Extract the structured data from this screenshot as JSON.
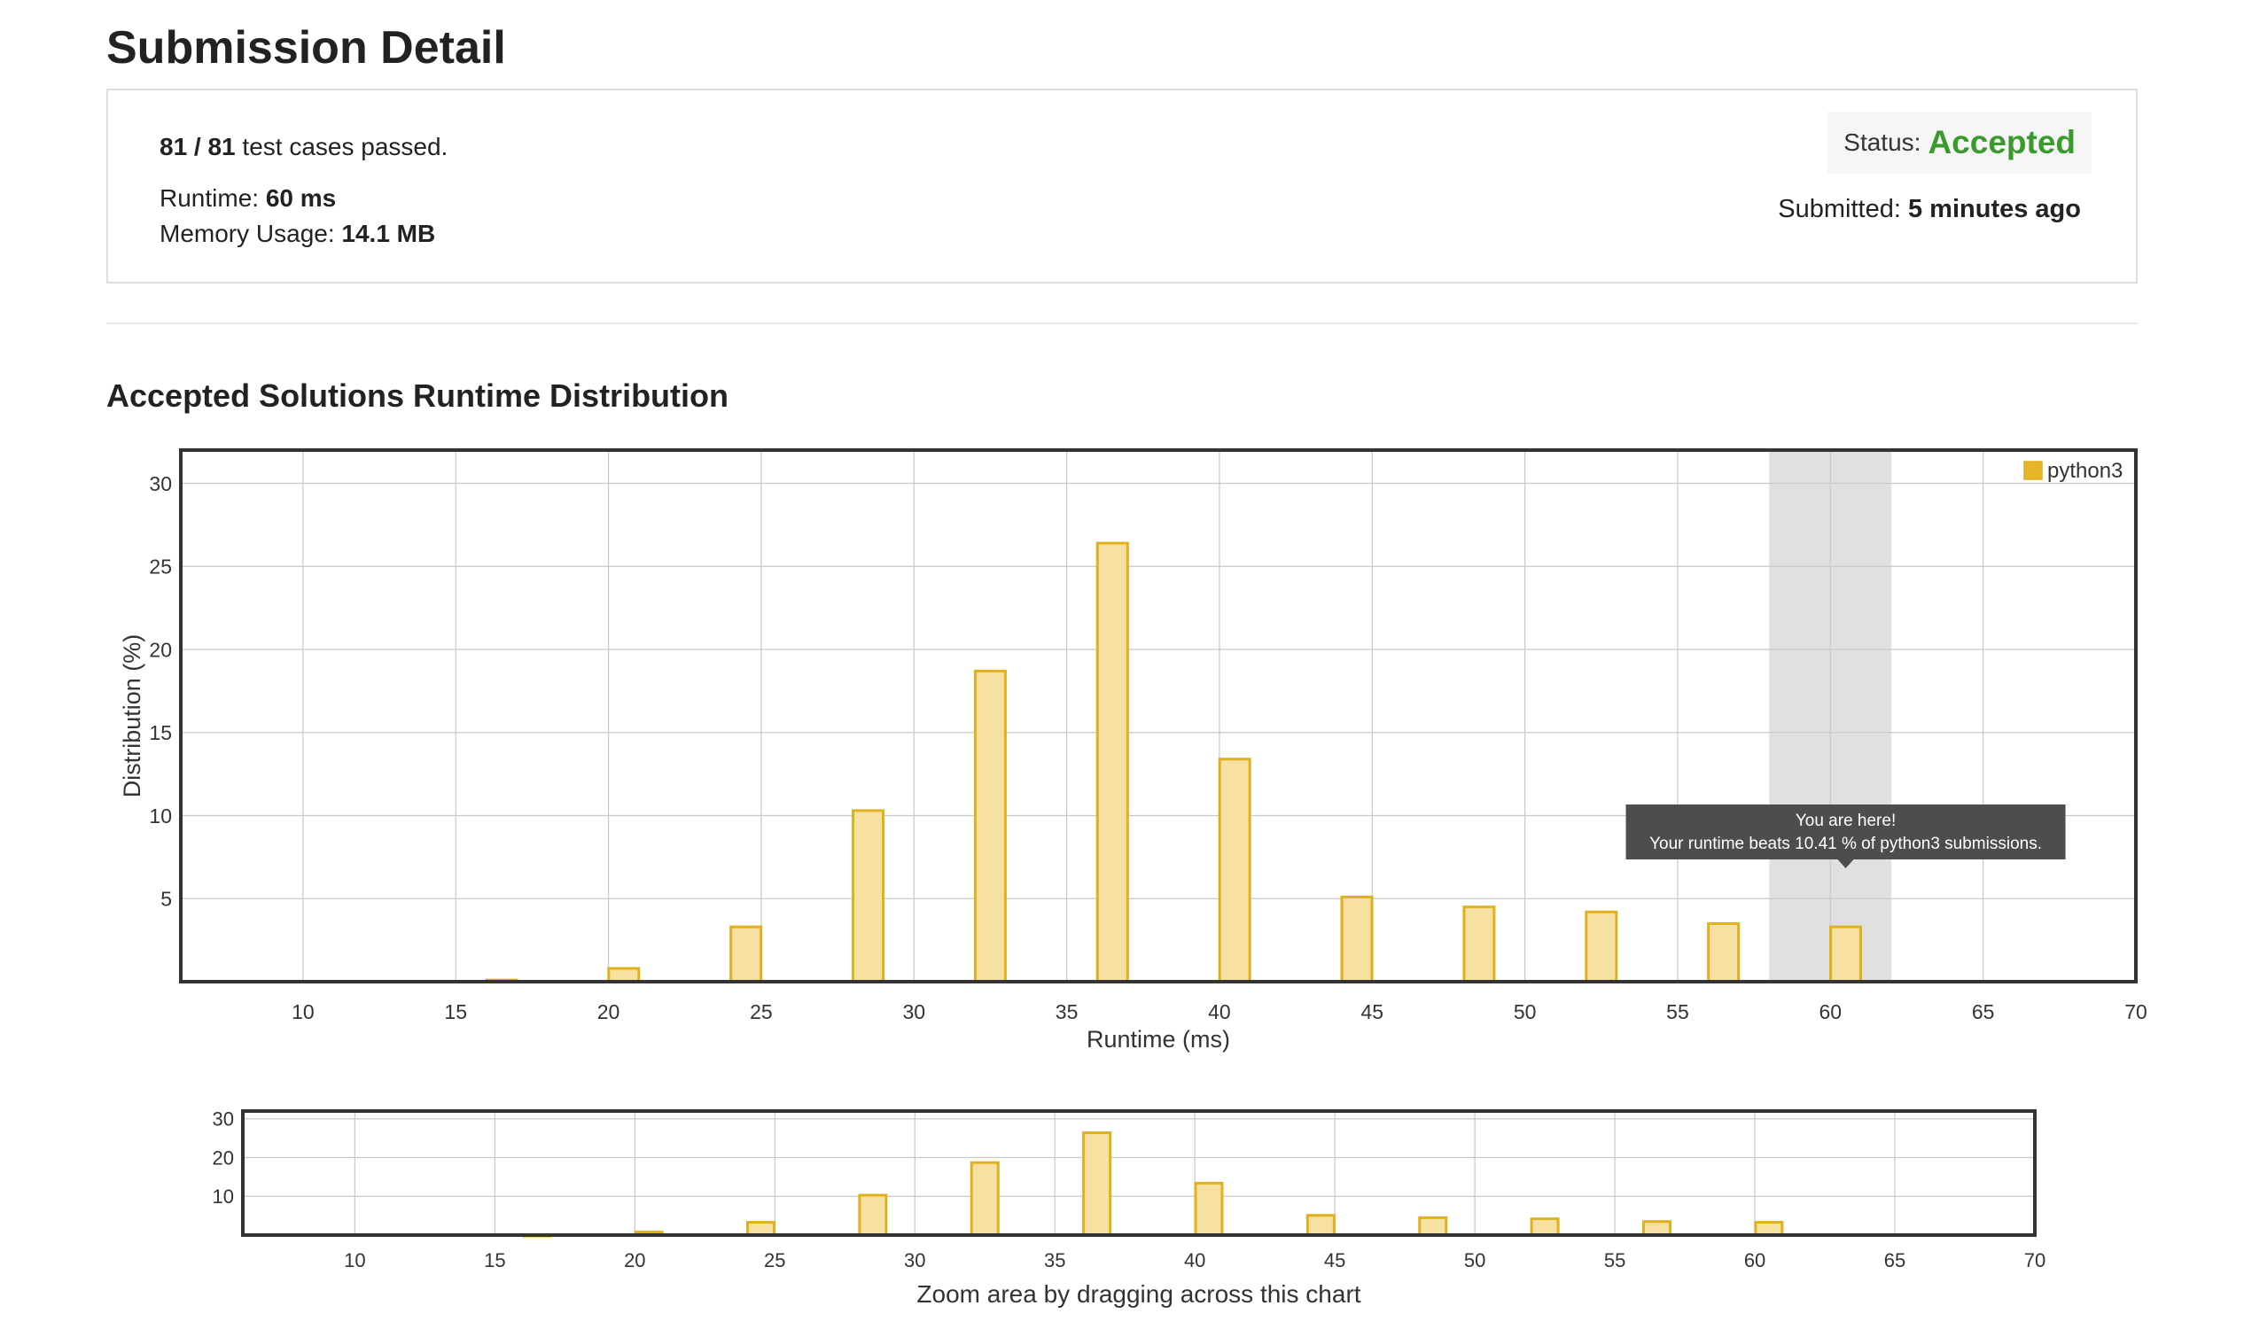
{
  "header": {
    "title": "Submission Detail"
  },
  "detail": {
    "tests_passed": "81 / 81",
    "tests_suffix": "test cases passed.",
    "runtime_label": "Runtime:",
    "runtime_value": "60 ms",
    "memory_label": "Memory Usage:",
    "memory_value": "14.1 MB",
    "status_label": "Status:",
    "status_value": "Accepted",
    "submitted_label": "Submitted:",
    "submitted_value": "5 minutes ago"
  },
  "section": {
    "title": "Accepted Solutions Runtime Distribution"
  },
  "colors": {
    "bar_fill": "#f6e1a3",
    "bar_stroke": "#e1b01f",
    "highlight_band": "#e0e0e0",
    "tooltip_bg": "#4d4d4d",
    "status_accent": "#3b9a2d"
  },
  "chart_data": [
    {
      "type": "bar",
      "xlabel": "Runtime (ms)",
      "ylabel": "Distribution (%)",
      "xlim": [
        6,
        70
      ],
      "ylim": [
        0,
        32
      ],
      "xticks": [
        10,
        15,
        20,
        25,
        30,
        35,
        40,
        45,
        50,
        55,
        60,
        65,
        70
      ],
      "yticks": [
        5,
        10,
        15,
        20,
        25,
        30
      ],
      "grid": true,
      "legend_position": "top-right",
      "highlight_range": [
        58,
        62
      ],
      "series": [
        {
          "name": "python3",
          "x": [
            16.5,
            20.5,
            24.5,
            28.5,
            32.5,
            36.5,
            40.5,
            44.5,
            48.5,
            52.5,
            56.5,
            60.5
          ],
          "values": [
            0.1,
            0.8,
            3.3,
            10.3,
            18.7,
            26.4,
            13.4,
            5.1,
            4.5,
            4.2,
            3.5,
            3.3
          ]
        }
      ],
      "tooltip": {
        "title": "You are here!",
        "text": "Your runtime beats 10.41 % of python3 submissions."
      }
    },
    {
      "type": "bar",
      "xlim": [
        6,
        70
      ],
      "ylim": [
        0,
        32
      ],
      "xticks": [
        10,
        15,
        20,
        25,
        30,
        35,
        40,
        45,
        50,
        55,
        60,
        65,
        70
      ],
      "yticks": [
        10,
        20,
        30
      ],
      "grid": true,
      "caption": "Zoom area by dragging across this chart",
      "series": [
        {
          "x": [
            16.5,
            20.5,
            24.5,
            28.5,
            32.5,
            36.5,
            40.5,
            44.5,
            48.5,
            52.5,
            56.5,
            60.5
          ],
          "values": [
            0.1,
            0.8,
            3.3,
            10.3,
            18.7,
            26.4,
            13.4,
            5.1,
            4.5,
            4.2,
            3.5,
            3.3
          ]
        }
      ]
    }
  ]
}
